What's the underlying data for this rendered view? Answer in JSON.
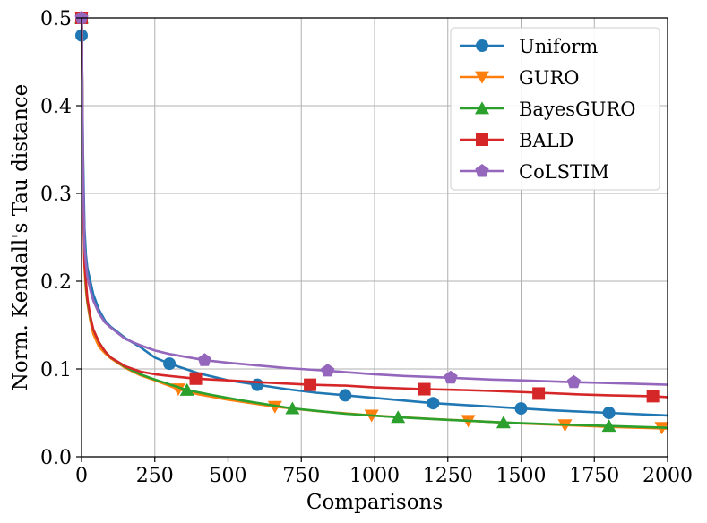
{
  "chart_data": {
    "type": "line",
    "title": "",
    "xlabel": "Comparisons",
    "ylabel": "Norm. Kendall's Tau distance",
    "xlim": [
      0,
      2000
    ],
    "ylim": [
      0,
      0.5
    ],
    "grid": true,
    "legend_position": "top-right",
    "x_ticks": [
      0,
      250,
      500,
      750,
      1000,
      1250,
      1500,
      1750,
      2000
    ],
    "x_tick_labels": [
      "0",
      "250",
      "500",
      "750",
      "1000",
      "1250",
      "1500",
      "1750",
      "2000"
    ],
    "y_ticks": [
      0,
      0.1,
      0.2,
      0.3,
      0.4,
      0.5
    ],
    "y_tick_labels": [
      "0.0",
      "0.1",
      "0.2",
      "0.3",
      "0.4",
      "0.5"
    ],
    "series": [
      {
        "name": "Uniform",
        "color": "#1f77b4",
        "marker": "circle",
        "x": [
          1,
          5,
          10,
          15,
          20,
          30,
          40,
          60,
          80,
          100,
          150,
          200,
          250,
          300,
          400,
          500,
          600,
          700,
          800,
          900,
          1000,
          1200,
          1400,
          1600,
          1800,
          2000
        ],
        "y": [
          0.48,
          0.35,
          0.26,
          0.23,
          0.215,
          0.2,
          0.185,
          0.167,
          0.155,
          0.148,
          0.135,
          0.125,
          0.113,
          0.106,
          0.095,
          0.087,
          0.082,
          0.077,
          0.073,
          0.07,
          0.067,
          0.061,
          0.057,
          0.053,
          0.05,
          0.047
        ],
        "marker_x": [
          0,
          300,
          600,
          900,
          1200,
          1500,
          1800
        ],
        "marker_y": [
          0.48,
          0.106,
          0.082,
          0.07,
          0.061,
          0.055,
          0.05
        ]
      },
      {
        "name": "GURO",
        "color": "#ff7f0e",
        "marker": "triangle-down",
        "x": [
          1,
          5,
          10,
          15,
          20,
          30,
          40,
          60,
          80,
          100,
          150,
          200,
          250,
          330,
          400,
          500,
          660,
          800,
          990,
          1200,
          1320,
          1500,
          1650,
          1800,
          2000
        ],
        "y": [
          0.5,
          0.3,
          0.215,
          0.19,
          0.175,
          0.155,
          0.14,
          0.125,
          0.118,
          0.112,
          0.101,
          0.093,
          0.087,
          0.077,
          0.071,
          0.065,
          0.057,
          0.052,
          0.047,
          0.043,
          0.041,
          0.038,
          0.036,
          0.034,
          0.032
        ],
        "marker_x": [
          0,
          330,
          660,
          990,
          1320,
          1650,
          1980
        ],
        "marker_y": [
          0.5,
          0.077,
          0.057,
          0.047,
          0.041,
          0.036,
          0.033
        ]
      },
      {
        "name": "BayesGURO",
        "color": "#2ca02c",
        "marker": "triangle-up",
        "x": [
          1,
          5,
          10,
          15,
          20,
          30,
          40,
          60,
          80,
          100,
          150,
          200,
          250,
          360,
          450,
          550,
          720,
          900,
          1080,
          1250,
          1440,
          1600,
          1800,
          2000
        ],
        "y": [
          0.5,
          0.31,
          0.225,
          0.195,
          0.178,
          0.158,
          0.145,
          0.13,
          0.12,
          0.113,
          0.102,
          0.094,
          0.088,
          0.076,
          0.07,
          0.064,
          0.055,
          0.049,
          0.045,
          0.042,
          0.039,
          0.037,
          0.035,
          0.033
        ],
        "marker_x": [
          0,
          360,
          720,
          1080,
          1440,
          1800
        ],
        "marker_y": [
          0.5,
          0.076,
          0.055,
          0.045,
          0.039,
          0.035
        ]
      },
      {
        "name": "BALD",
        "color": "#d62728",
        "marker": "square",
        "x": [
          1,
          5,
          10,
          15,
          20,
          30,
          40,
          60,
          80,
          100,
          150,
          200,
          250,
          300,
          390,
          500,
          600,
          780,
          900,
          1000,
          1170,
          1300,
          1400,
          1560,
          1700,
          1800,
          1950,
          2000
        ],
        "y": [
          0.5,
          0.3,
          0.22,
          0.2,
          0.18,
          0.16,
          0.145,
          0.13,
          0.12,
          0.113,
          0.103,
          0.097,
          0.094,
          0.092,
          0.089,
          0.087,
          0.085,
          0.082,
          0.081,
          0.079,
          0.077,
          0.076,
          0.075,
          0.073,
          0.071,
          0.07,
          0.069,
          0.068
        ],
        "marker_x": [
          0,
          390,
          780,
          1170,
          1560,
          1950
        ],
        "marker_y": [
          0.5,
          0.089,
          0.082,
          0.077,
          0.072,
          0.069
        ]
      },
      {
        "name": "CoLSTIM",
        "color": "#9467bd",
        "marker": "pentagon",
        "x": [
          1,
          5,
          10,
          15,
          20,
          30,
          40,
          60,
          80,
          100,
          150,
          200,
          250,
          300,
          420,
          500,
          600,
          700,
          840,
          1000,
          1100,
          1260,
          1400,
          1500,
          1680,
          1800,
          2000
        ],
        "y": [
          0.5,
          0.33,
          0.24,
          0.22,
          0.205,
          0.19,
          0.178,
          0.163,
          0.153,
          0.147,
          0.134,
          0.127,
          0.121,
          0.117,
          0.11,
          0.107,
          0.104,
          0.101,
          0.098,
          0.094,
          0.092,
          0.09,
          0.088,
          0.087,
          0.085,
          0.084,
          0.082
        ],
        "marker_x": [
          0,
          420,
          840,
          1260,
          1680
        ],
        "marker_y": [
          0.5,
          0.11,
          0.098,
          0.09,
          0.085
        ]
      }
    ]
  }
}
